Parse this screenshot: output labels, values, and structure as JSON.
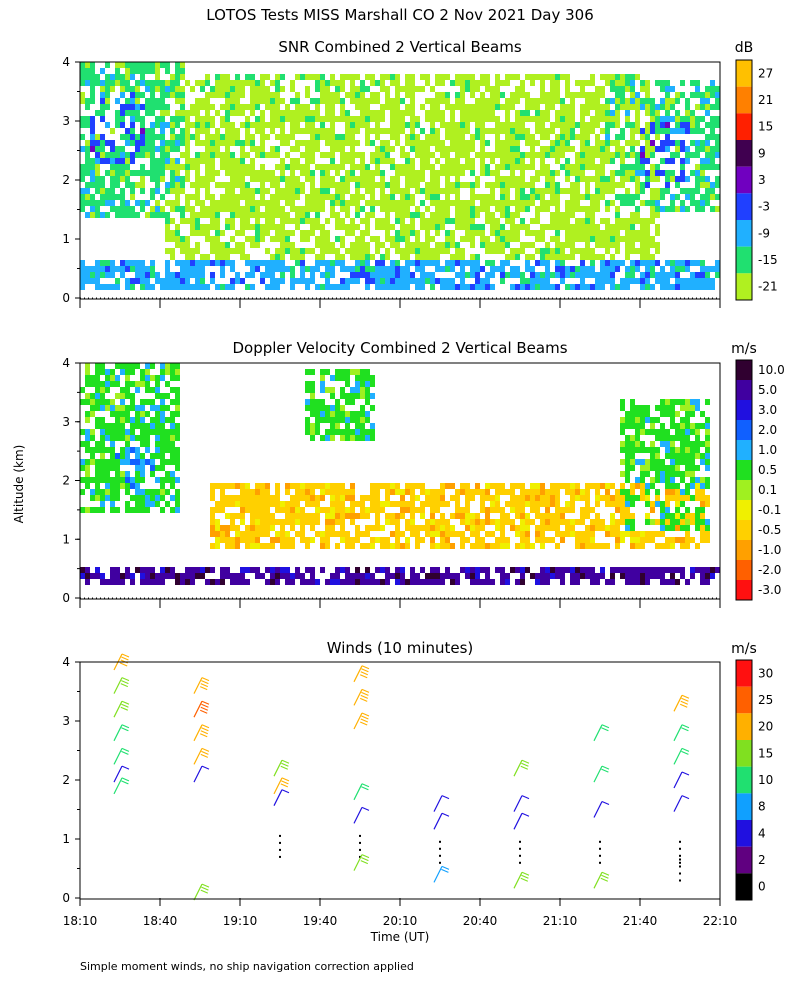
{
  "header": {
    "title": "LOTOS Tests MISS Marshall CO   2 Nov 2021 Day 306",
    "footnote": "Simple moment winds, no ship navigation correction applied"
  },
  "chart_data": [
    {
      "type": "heatmap",
      "title": "SNR Combined 2 Vertical Beams",
      "ylabel": "Altitude (km)",
      "xlabel": "Time (UT)",
      "ylim": [
        0,
        4
      ],
      "y_ticks": [
        "0",
        "1",
        "2",
        "3",
        "4"
      ],
      "colorbar": {
        "unit": "dB",
        "labels": [
          "27",
          "21",
          "15",
          "9",
          "3",
          "-3",
          "-9",
          "-15",
          "-21"
        ],
        "colors": [
          "#ffc000",
          "#ff8000",
          "#ff2000",
          "#400050",
          "#7000c0",
          "#2040ff",
          "#20b0ff",
          "#20e070",
          "#b0f020"
        ]
      },
      "echo_regions": [
        {
          "t0": 0.0,
          "t1": 0.16,
          "a0": 1.4,
          "a1": 4.0,
          "level": 7
        },
        {
          "t0": 0.01,
          "t1": 0.1,
          "a0": 2.3,
          "a1": 3.5,
          "level": 5
        },
        {
          "t0": 0.13,
          "t1": 0.9,
          "a0": 0.7,
          "a1": 3.8,
          "level": 8
        },
        {
          "t0": 0.82,
          "t1": 1.0,
          "a0": 1.5,
          "a1": 3.7,
          "level": 7
        },
        {
          "t0": 0.87,
          "t1": 0.95,
          "a0": 1.9,
          "a1": 3.0,
          "level": 5
        },
        {
          "t0": 0.0,
          "t1": 1.0,
          "a0": 0.2,
          "a1": 0.65,
          "level": 6
        }
      ]
    },
    {
      "type": "heatmap",
      "title": "Doppler Velocity Combined 2 Vertical Beams",
      "ylabel": "Altitude (km)",
      "ylim": [
        0,
        4
      ],
      "y_ticks": [
        "0",
        "1",
        "2",
        "3",
        "4"
      ],
      "colorbar": {
        "unit": "m/s",
        "labels": [
          "10.0",
          "5.0",
          "3.0",
          "2.0",
          "1.0",
          "0.5",
          "0.1",
          "-0.1",
          "-0.5",
          "-1.0",
          "-2.0",
          "-3.0"
        ],
        "colors": [
          "#300030",
          "#4000a0",
          "#2010e0",
          "#1060ff",
          "#20b0ff",
          "#20e020",
          "#a0f020",
          "#f0f000",
          "#ffd000",
          "#ffa000",
          "#ff6000",
          "#ff1010"
        ]
      },
      "echo_regions": [
        {
          "t0": 0.0,
          "t1": 0.15,
          "a0": 1.5,
          "a1": 4.0,
          "level": 5
        },
        {
          "t0": 0.05,
          "t1": 0.12,
          "a0": 1.9,
          "a1": 2.6,
          "level": 4
        },
        {
          "t0": 0.35,
          "t1": 0.46,
          "a0": 2.7,
          "a1": 3.9,
          "level": 5
        },
        {
          "t0": 0.2,
          "t1": 0.98,
          "a0": 0.9,
          "a1": 2.0,
          "level": 8
        },
        {
          "t0": 0.84,
          "t1": 0.98,
          "a0": 1.2,
          "a1": 3.4,
          "level": 5
        },
        {
          "t0": 0.0,
          "t1": 1.0,
          "a0": 0.25,
          "a1": 0.6,
          "level": 1
        }
      ]
    },
    {
      "type": "scatter",
      "title": "Winds (10 minutes)",
      "ylabel": "Altitude (km)",
      "xlabel": "Time (UT)",
      "ylim": [
        0,
        4
      ],
      "y_ticks": [
        "0",
        "1",
        "2",
        "3",
        "4"
      ],
      "x_ticks": [
        "18:10",
        "18:40",
        "19:10",
        "19:40",
        "20:10",
        "20:40",
        "21:10",
        "21:40",
        "22:10"
      ],
      "colorbar": {
        "unit": "m/s",
        "labels": [
          "30",
          "25",
          "20",
          "15",
          "10",
          "8",
          "4",
          "2",
          "0"
        ],
        "colors": [
          "#ff1010",
          "#ff6000",
          "#ffb000",
          "#80e020",
          "#20e070",
          "#10a0ff",
          "#2010e0",
          "#600080",
          "#000000"
        ]
      },
      "wind_columns": [
        {
          "time": "18:25",
          "points": [
            {
              "alt": 4.0,
              "speed": 22
            },
            {
              "alt": 3.6,
              "speed": 16
            },
            {
              "alt": 3.2,
              "speed": 15
            },
            {
              "alt": 2.8,
              "speed": 14
            },
            {
              "alt": 2.4,
              "speed": 14
            },
            {
              "alt": 2.1,
              "speed": 6
            },
            {
              "alt": 1.9,
              "speed": 13
            }
          ]
        },
        {
          "time": "18:55",
          "points": [
            {
              "alt": 3.6,
              "speed": 24
            },
            {
              "alt": 3.2,
              "speed": 25
            },
            {
              "alt": 2.8,
              "speed": 24
            },
            {
              "alt": 2.4,
              "speed": 20
            },
            {
              "alt": 2.1,
              "speed": 6
            },
            {
              "alt": 0.1,
              "speed": 18
            }
          ]
        },
        {
          "time": "19:25",
          "points": [
            {
              "alt": 2.2,
              "speed": 18
            },
            {
              "alt": 1.9,
              "speed": 20
            },
            {
              "alt": 1.7,
              "speed": 6
            },
            {
              "alt": 0.9,
              "speed": 0
            }
          ]
        },
        {
          "time": "19:55",
          "points": [
            {
              "alt": 3.8,
              "speed": 23
            },
            {
              "alt": 3.4,
              "speed": 22
            },
            {
              "alt": 3.0,
              "speed": 22
            },
            {
              "alt": 1.8,
              "speed": 11
            },
            {
              "alt": 1.4,
              "speed": 6
            },
            {
              "alt": 0.9,
              "speed": 0
            },
            {
              "alt": 0.6,
              "speed": 18
            }
          ]
        },
        {
          "time": "20:25",
          "points": [
            {
              "alt": 1.6,
              "speed": 5
            },
            {
              "alt": 1.3,
              "speed": 6
            },
            {
              "alt": 0.8,
              "speed": 0
            },
            {
              "alt": 0.4,
              "speed": 9
            }
          ]
        },
        {
          "time": "20:55",
          "points": [
            {
              "alt": 2.2,
              "speed": 16
            },
            {
              "alt": 1.6,
              "speed": 7
            },
            {
              "alt": 1.3,
              "speed": 6
            },
            {
              "alt": 0.8,
              "speed": 0
            },
            {
              "alt": 0.3,
              "speed": 17
            }
          ]
        },
        {
          "time": "21:25",
          "points": [
            {
              "alt": 2.8,
              "speed": 14
            },
            {
              "alt": 2.1,
              "speed": 12
            },
            {
              "alt": 1.5,
              "speed": 6
            },
            {
              "alt": 0.8,
              "speed": 0
            },
            {
              "alt": 0.3,
              "speed": 18
            }
          ]
        },
        {
          "time": "21:55",
          "points": [
            {
              "alt": 3.3,
              "speed": 22
            },
            {
              "alt": 2.8,
              "speed": 14
            },
            {
              "alt": 2.4,
              "speed": 11
            },
            {
              "alt": 2.0,
              "speed": 6
            },
            {
              "alt": 1.6,
              "speed": 6
            },
            {
              "alt": 0.8,
              "speed": 0
            },
            {
              "alt": 0.5,
              "speed": 0
            }
          ]
        }
      ]
    }
  ]
}
